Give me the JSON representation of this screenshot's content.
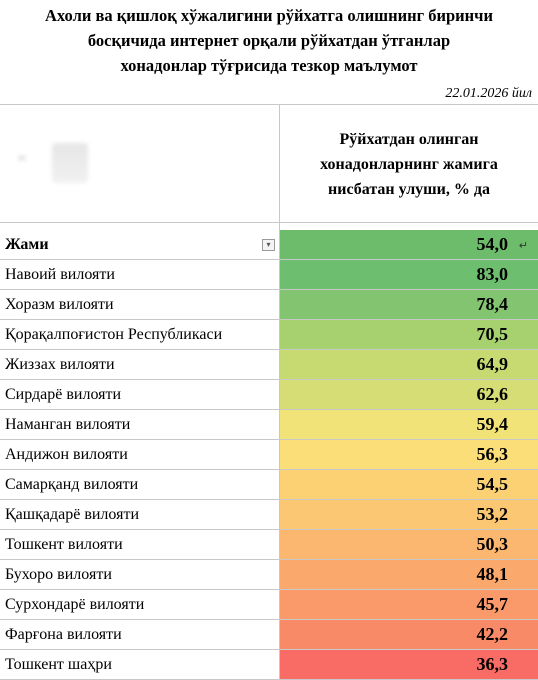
{
  "title": {
    "line1": "Ахоли ва қишлоқ хўжалигини рўйхатга олишнинг биринчи",
    "line2": "босқичида интернет орқали рўйхатдан  ўтганлар",
    "line3": "хонадонлар тўғрисида тезкор маълумот"
  },
  "date": "22.01.2026 йил",
  "header": {
    "line1": "Рўйхатдан олинган",
    "line2": "хонадонларнинг жамига",
    "line3": "нисбатан улуши, % да"
  },
  "icons": {
    "filter": "filter-dropdown-icon",
    "cell": "enter-arrow-icon"
  },
  "rows": [
    {
      "name": "Жами",
      "value": "54,0",
      "color": "#6cbc6c"
    },
    {
      "name": "Навоий вилояти",
      "value": "83,0",
      "color": "#6dbe6f"
    },
    {
      "name": "Хоразм вилояти",
      "value": "78,4",
      "color": "#82c46f"
    },
    {
      "name": "Қорақалпоғистон Республикаси",
      "value": "70,5",
      "color": "#a7d06f"
    },
    {
      "name": "Жиззах вилояти",
      "value": "64,9",
      "color": "#c7da72"
    },
    {
      "name": "Сирдарё вилояти",
      "value": "62,6",
      "color": "#d5dd74"
    },
    {
      "name": "Наманган вилояти",
      "value": "59,4",
      "color": "#f1e377"
    },
    {
      "name": "Андижон вилояти",
      "value": "56,3",
      "color": "#fbde77"
    },
    {
      "name": "Самарқанд вилояти",
      "value": "54,5",
      "color": "#fcd174"
    },
    {
      "name": "Қашқадарё вилояти",
      "value": "53,2",
      "color": "#fcc772"
    },
    {
      "name": "Тошкент вилояти",
      "value": "50,3",
      "color": "#fbb66f"
    },
    {
      "name": "Бухоро вилояти",
      "value": "48,1",
      "color": "#fba86d"
    },
    {
      "name": "Сурхондарё вилояти",
      "value": "45,7",
      "color": "#fa9a6b"
    },
    {
      "name": "Фарғона вилояти",
      "value": "42,2",
      "color": "#f98a68"
    },
    {
      "name": "Тошкент шаҳри",
      "value": "36,3",
      "color": "#f86c65"
    }
  ]
}
